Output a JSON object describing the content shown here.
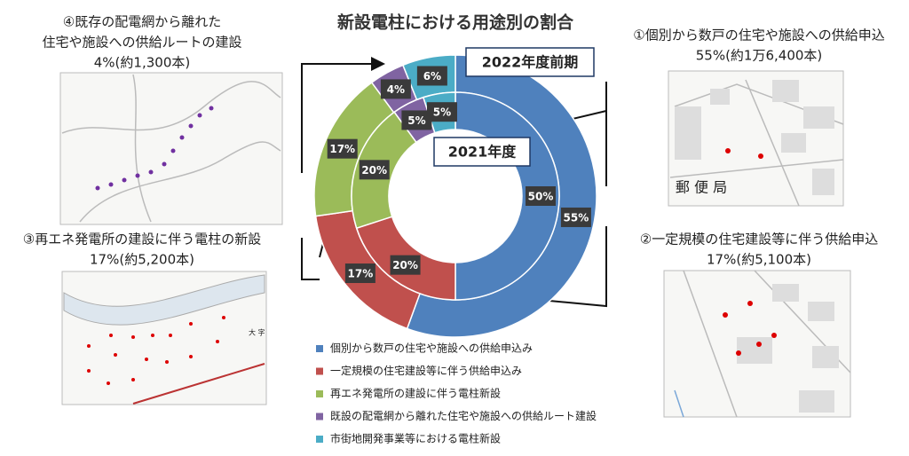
{
  "chart_data": {
    "type": "donut",
    "title": "新設電柱における用途別の割合",
    "categories": [
      "個別から数戸の住宅や施設への供給申込み",
      "一定規模の住宅建設等に伴う供給申込み",
      "再エネ発電所の建設に伴う電柱新設",
      "既設の配電網から離れた住宅や施設への供給ルート建設",
      "市街地開発事業等における電柱新設"
    ],
    "colors": [
      "#4f81bd",
      "#c0504d",
      "#9bbb59",
      "#8064a2",
      "#4bacc6"
    ],
    "series": [
      {
        "name": "2022年度前期",
        "values": [
          55,
          17,
          17,
          4,
          6
        ],
        "value_labels": [
          "55%",
          "17%",
          "17%",
          "4%",
          "6%"
        ]
      },
      {
        "name": "2021年度",
        "values": [
          50,
          20,
          20,
          5,
          5
        ],
        "value_labels": [
          "50%",
          "20%",
          "20%",
          "5%",
          "5%"
        ]
      }
    ],
    "annotations": [
      {
        "title": [
          "①個別から数戸の住宅や施設への供給申込"
        ],
        "detail": "55%(約1万6,400本)"
      },
      {
        "title": [
          "②一定規模の住宅建設等に伴う供給申込"
        ],
        "detail": "17%(約5,100本)"
      },
      {
        "title": [
          "③再エネ発電所の建設に伴う電柱の新設"
        ],
        "detail": "17%(約5,200本)"
      },
      {
        "title": [
          "④既存の配電網から離れた",
          "住宅や施設への供給ルートの建設"
        ],
        "detail": "4%(約1,300本)"
      }
    ],
    "map_labels": [
      "郵 便 局",
      "大 字"
    ]
  }
}
